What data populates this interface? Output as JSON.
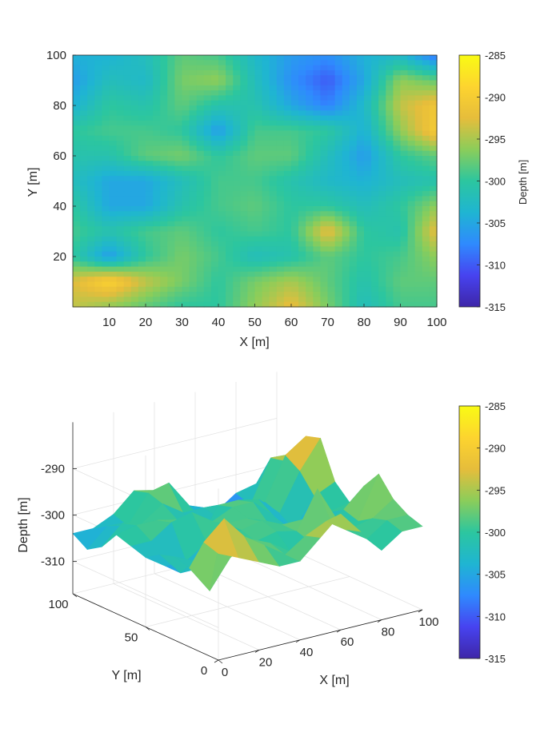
{
  "colormap": [
    "#3e26a8",
    "#4743f0",
    "#2f8afe",
    "#1fb5d2",
    "#2cc69f",
    "#8bcd5a",
    "#e6bd3b",
    "#fdd42f",
    "#f9fb14"
  ],
  "chart_data": [
    {
      "type": "heatmap",
      "title": "",
      "xlabel": "X [m]",
      "ylabel": "Y [m]",
      "xlim": [
        0,
        100
      ],
      "ylim": [
        0,
        100
      ],
      "xticks": [
        "10",
        "20",
        "30",
        "40",
        "50",
        "60",
        "70",
        "80",
        "90",
        "100"
      ],
      "yticks": [
        "20",
        "40",
        "60",
        "80",
        "100"
      ],
      "colorbar": {
        "label": "Depth [m]",
        "clim": [
          -315,
          -285
        ],
        "ticks": [
          "-285",
          "-290",
          "-295",
          "-300",
          "-305",
          "-310",
          "-315"
        ]
      },
      "x": [
        0,
        10,
        20,
        30,
        40,
        50,
        60,
        70,
        80,
        90,
        100
      ],
      "y": [
        100,
        90,
        80,
        70,
        60,
        50,
        40,
        30,
        20,
        10,
        0
      ],
      "z": [
        [
          -304,
          -304,
          -302,
          -298,
          -299,
          -303,
          -306,
          -307,
          -304,
          -303,
          -309
        ],
        [
          -306,
          -302,
          -303,
          -297,
          -296,
          -302,
          -307,
          -310,
          -305,
          -296,
          -298
        ],
        [
          -304,
          -300,
          -301,
          -298,
          -301,
          -301,
          -305,
          -308,
          -303,
          -294,
          -291
        ],
        [
          -300,
          -299,
          -299,
          -300,
          -306,
          -299,
          -299,
          -300,
          -304,
          -296,
          -290
        ],
        [
          -301,
          -301,
          -298,
          -297,
          -300,
          -298,
          -298,
          -302,
          -306,
          -300,
          -298
        ],
        [
          -302,
          -305,
          -305,
          -302,
          -299,
          -299,
          -301,
          -303,
          -304,
          -302,
          -301
        ],
        [
          -300,
          -305,
          -305,
          -301,
          -299,
          -298,
          -300,
          -300,
          -302,
          -300,
          -296
        ],
        [
          -299,
          -301,
          -299,
          -298,
          -300,
          -299,
          -300,
          -292,
          -300,
          -301,
          -292
        ],
        [
          -300,
          -306,
          -300,
          -297,
          -299,
          -302,
          -301,
          -298,
          -300,
          -299,
          -296
        ],
        [
          -293,
          -289,
          -294,
          -297,
          -300,
          -297,
          -295,
          -298,
          -301,
          -298,
          -298
        ],
        [
          -294,
          -296,
          -298,
          -300,
          -300,
          -296,
          -292,
          -297,
          -302,
          -299,
          -299
        ]
      ]
    },
    {
      "type": "surface",
      "title": "",
      "xlabel": "X [m]",
      "ylabel": "Y [m]",
      "zlabel": "Depth [m]",
      "xticks": [
        "0",
        "20",
        "40",
        "60",
        "80",
        "100"
      ],
      "yticks": [
        "0",
        "50",
        "100"
      ],
      "zticks": [
        "-290",
        "-300",
        "-310"
      ],
      "zlim": [
        -315,
        -285
      ],
      "colorbar": {
        "clim": [
          -315,
          -285
        ],
        "ticks": [
          "-285",
          "-290",
          "-295",
          "-300",
          "-305",
          "-310",
          "-315"
        ]
      }
    }
  ]
}
